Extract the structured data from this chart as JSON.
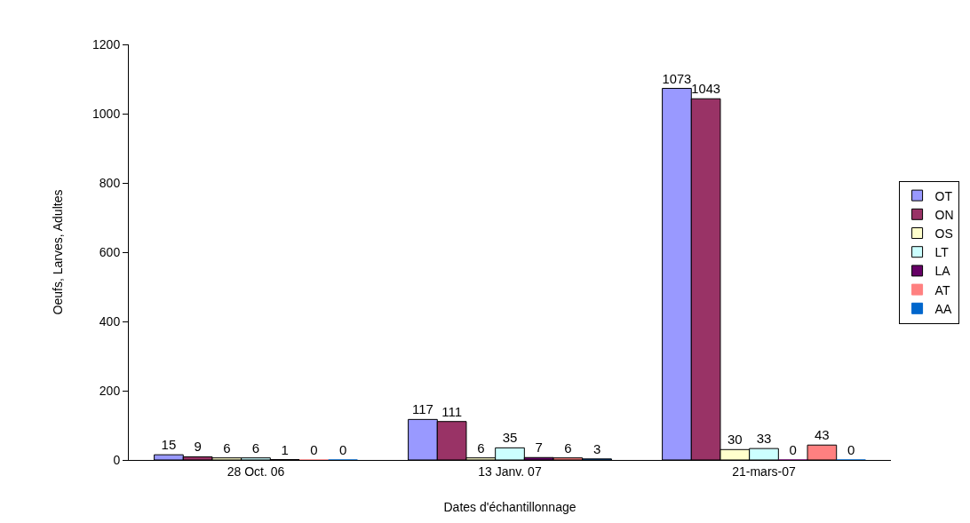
{
  "chart_data": {
    "type": "bar",
    "xlabel": "Dates d'échantillonnage",
    "ylabel": "Oeufs, Larves, Adultes",
    "categories": [
      "28 Oct. 06",
      "13 Janv. 07",
      "21-mars-07"
    ],
    "series": [
      {
        "name": "OT",
        "color": "#9999ff",
        "values": [
          15,
          117,
          1073
        ]
      },
      {
        "name": "ON",
        "color": "#993366",
        "values": [
          9,
          111,
          1043
        ]
      },
      {
        "name": "OS",
        "color": "#ffffcc",
        "values": [
          6,
          6,
          30
        ]
      },
      {
        "name": "LT",
        "color": "#ccffff",
        "values": [
          6,
          35,
          33
        ]
      },
      {
        "name": "LA",
        "color": "#660066",
        "values": [
          1,
          7,
          0
        ]
      },
      {
        "name": "AT",
        "color": "#ff8080",
        "values": [
          0,
          6,
          43
        ]
      },
      {
        "name": "AA",
        "color": "#0066cc",
        "values": [
          0,
          3,
          0
        ]
      }
    ],
    "ylim": [
      0,
      1200
    ],
    "yticks": [
      0,
      200,
      400,
      600,
      800,
      1000,
      1200
    ],
    "grid": false,
    "legend": "right",
    "data_labels": true
  }
}
